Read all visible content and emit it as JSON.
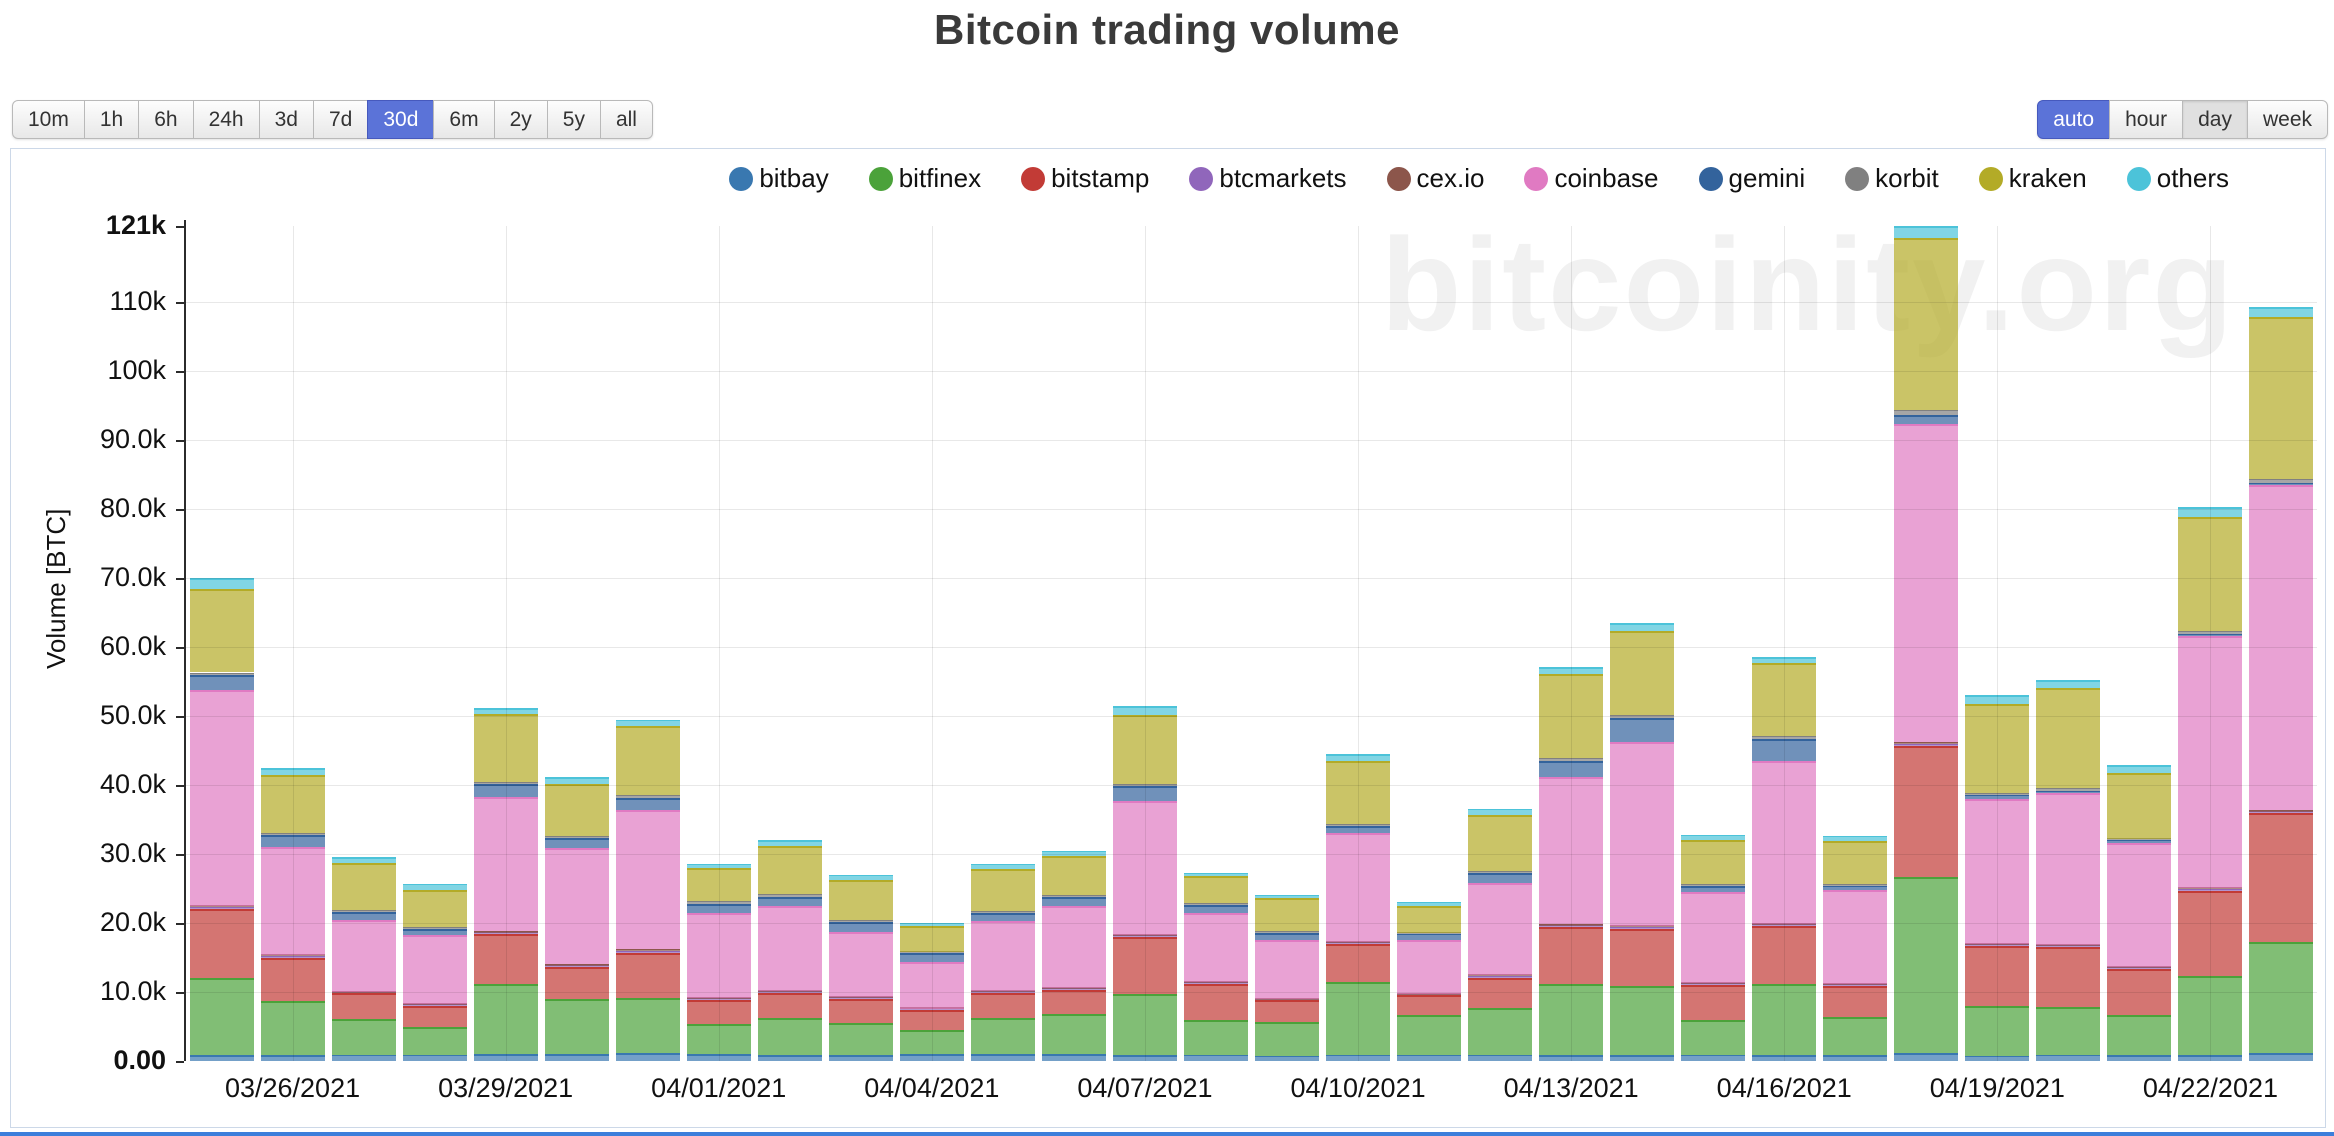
{
  "page": {
    "title": "Bitcoin trading volume",
    "watermark": "bitcoinity.org"
  },
  "toolbar": {
    "time_ranges": [
      "10m",
      "1h",
      "6h",
      "24h",
      "3d",
      "7d",
      "30d",
      "6m",
      "2y",
      "5y",
      "all"
    ],
    "time_range_selected": "30d",
    "granularities": [
      "auto",
      "hour",
      "day",
      "week"
    ],
    "granularity_selected": "auto",
    "granularity_pressed": "day"
  },
  "chart_data": {
    "type": "bar",
    "stacked": true,
    "title": "Bitcoin trading volume",
    "ylabel": "Volume [BTC]",
    "unit": "BTC",
    "ylim": [
      0,
      121000
    ],
    "grid": true,
    "legend_position": "top",
    "categories": [
      "03/25/2021",
      "03/26/2021",
      "03/27/2021",
      "03/28/2021",
      "03/29/2021",
      "03/30/2021",
      "03/31/2021",
      "04/01/2021",
      "04/02/2021",
      "04/03/2021",
      "04/04/2021",
      "04/05/2021",
      "04/06/2021",
      "04/07/2021",
      "04/08/2021",
      "04/09/2021",
      "04/10/2021",
      "04/11/2021",
      "04/12/2021",
      "04/13/2021",
      "04/14/2021",
      "04/15/2021",
      "04/16/2021",
      "04/17/2021",
      "04/18/2021",
      "04/19/2021",
      "04/20/2021",
      "04/21/2021",
      "04/22/2021",
      "04/23/2021"
    ],
    "x_tick_indices": [
      1,
      4,
      7,
      10,
      13,
      16,
      19,
      22,
      25,
      28
    ],
    "y_ticks": [
      {
        "value": 0,
        "label": "0.00",
        "bold": true
      },
      {
        "value": 10000,
        "label": "10.0k",
        "bold": false
      },
      {
        "value": 20000,
        "label": "20.0k",
        "bold": false
      },
      {
        "value": 30000,
        "label": "30.0k",
        "bold": false
      },
      {
        "value": 40000,
        "label": "40.0k",
        "bold": false
      },
      {
        "value": 50000,
        "label": "50.0k",
        "bold": false
      },
      {
        "value": 60000,
        "label": "60.0k",
        "bold": false
      },
      {
        "value": 70000,
        "label": "70.0k",
        "bold": false
      },
      {
        "value": 80000,
        "label": "80.0k",
        "bold": false
      },
      {
        "value": 90000,
        "label": "90.0k",
        "bold": false
      },
      {
        "value": 100000,
        "label": "100k",
        "bold": false
      },
      {
        "value": 110000,
        "label": "110k",
        "bold": false
      },
      {
        "value": 121000,
        "label": "121k",
        "bold": true
      }
    ],
    "series": [
      {
        "name": "bitbay",
        "color": "#3978b0",
        "values": [
          900,
          900,
          800,
          800,
          1000,
          1000,
          1100,
          1000,
          900,
          900,
          1000,
          1000,
          1000,
          900,
          800,
          700,
          800,
          800,
          800,
          900,
          900,
          800,
          900,
          900,
          1200,
          700,
          800,
          900,
          900,
          1200
        ]
      },
      {
        "name": "bitfinex",
        "color": "#4ba23a",
        "values": [
          11100,
          7800,
          5300,
          4200,
          10100,
          8000,
          8100,
          4400,
          5400,
          4600,
          3500,
          5200,
          5800,
          8800,
          5100,
          5000,
          10700,
          5900,
          6900,
          10200,
          10000,
          5200,
          10200,
          5500,
          25500,
          7300,
          7000,
          5800,
          11400,
          16000
        ]
      },
      {
        "name": "bitstamp",
        "color": "#c23b36",
        "values": [
          10100,
          6300,
          3700,
          3000,
          7300,
          4600,
          6500,
          3400,
          3600,
          3500,
          2900,
          3600,
          3500,
          8200,
          5300,
          3100,
          5400,
          2800,
          4400,
          8300,
          8300,
          5000,
          8400,
          4500,
          19000,
          8700,
          8700,
          6600,
          12400,
          18700
        ]
      },
      {
        "name": "btcmarkets",
        "color": "#9066bb",
        "values": [
          200,
          200,
          100,
          100,
          200,
          200,
          200,
          150,
          150,
          150,
          100,
          150,
          150,
          200,
          150,
          100,
          200,
          100,
          200,
          200,
          200,
          100,
          200,
          100,
          300,
          150,
          150,
          150,
          200,
          250
        ]
      },
      {
        "name": "cex.io",
        "color": "#8c564b",
        "values": [
          200,
          200,
          100,
          100,
          200,
          200,
          300,
          150,
          150,
          150,
          100,
          150,
          150,
          200,
          150,
          100,
          200,
          100,
          200,
          200,
          200,
          200,
          200,
          200,
          300,
          150,
          150,
          150,
          200,
          250
        ]
      },
      {
        "name": "coinbase",
        "color": "#e07ac2",
        "values": [
          31300,
          15600,
          10400,
          10000,
          19500,
          16900,
          20200,
          12400,
          12300,
          9400,
          6800,
          10200,
          11900,
          19400,
          9900,
          8600,
          15800,
          7900,
          13300,
          21400,
          26600,
          13200,
          23600,
          13600,
          46000,
          21000,
          22000,
          18000,
          36500,
          47000
        ]
      },
      {
        "name": "gemini",
        "color": "#33639c",
        "values": [
          2200,
          1700,
          1200,
          900,
          1800,
          1400,
          1700,
          1300,
          1300,
          1400,
          1200,
          1100,
          1200,
          2200,
          1200,
          1000,
          1000,
          800,
          1400,
          2300,
          3500,
          900,
          3200,
          600,
          1300,
          500,
          400,
          400,
          300,
          300
        ]
      },
      {
        "name": "korbit",
        "color": "#808080",
        "values": [
          300,
          300,
          300,
          300,
          400,
          300,
          500,
          400,
          350,
          300,
          250,
          350,
          300,
          300,
          300,
          300,
          300,
          200,
          300,
          400,
          500,
          300,
          400,
          300,
          700,
          300,
          300,
          200,
          400,
          600
        ]
      },
      {
        "name": "kraken",
        "color": "#b3ab27",
        "values": [
          12100,
          8400,
          6800,
          5400,
          9800,
          7600,
          10000,
          4700,
          7000,
          5900,
          3700,
          6100,
          5700,
          10000,
          3900,
          4700,
          9100,
          3800,
          8200,
          12200,
          12100,
          6300,
          10600,
          6200,
          25000,
          13000,
          14500,
          9500,
          16500,
          23500
        ]
      },
      {
        "name": "others",
        "color": "#4cc3d9",
        "values": [
          1600,
          1000,
          900,
          800,
          900,
          900,
          800,
          700,
          900,
          600,
          500,
          700,
          700,
          1200,
          500,
          500,
          1000,
          600,
          800,
          1000,
          1200,
          800,
          900,
          700,
          1700,
          1200,
          1200,
          1200,
          1500,
          1500
        ]
      }
    ]
  }
}
